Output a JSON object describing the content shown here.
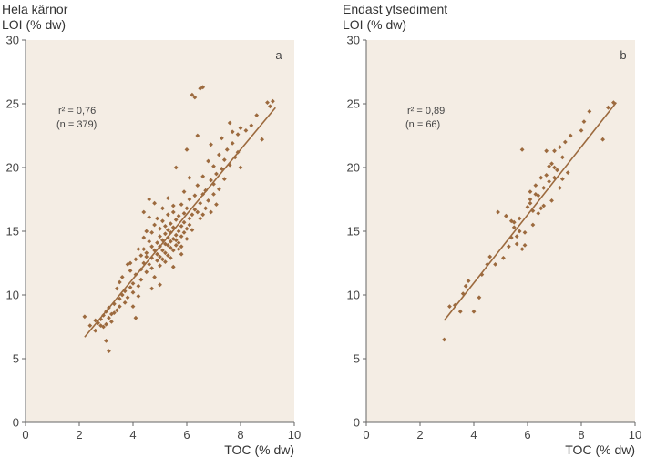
{
  "colors": {
    "background": "#ffffff",
    "plot_area": "#f4ede4",
    "marker": "#9c6a3e",
    "line": "#9c6a3e",
    "axis": "#666666"
  },
  "chart_data": [
    {
      "type": "scatter",
      "title_line1": "Hela kärnor",
      "title_line2": "LOI (% dw)",
      "xlabel": "TOC (% dw)",
      "panel_label": "a",
      "xlim": [
        0,
        10
      ],
      "ylim": [
        0,
        30
      ],
      "xticks": [
        "0",
        "2",
        "4",
        "6",
        "8",
        "10"
      ],
      "yticks": [
        "0",
        "5",
        "10",
        "15",
        "20",
        "25",
        "30"
      ],
      "r2_text": "r² = 0,76",
      "n_text": "(n = 379)",
      "fit_line": {
        "x": [
          2.2,
          9.3
        ],
        "y": [
          6.7,
          24.7
        ]
      },
      "points": [
        [
          2.2,
          8.3
        ],
        [
          2.4,
          7.6
        ],
        [
          2.6,
          8.0
        ],
        [
          2.7,
          7.8
        ],
        [
          2.8,
          7.6
        ],
        [
          2.8,
          8.1
        ],
        [
          2.9,
          7.5
        ],
        [
          2.9,
          8.4
        ],
        [
          3.0,
          6.4
        ],
        [
          3.0,
          7.7
        ],
        [
          3.0,
          8.7
        ],
        [
          3.1,
          5.6
        ],
        [
          3.1,
          8.2
        ],
        [
          3.1,
          9.0
        ],
        [
          3.2,
          8.5
        ],
        [
          3.2,
          7.9
        ],
        [
          3.3,
          9.3
        ],
        [
          3.3,
          8.6
        ],
        [
          3.4,
          8.8
        ],
        [
          3.4,
          10.5
        ],
        [
          3.5,
          9.1
        ],
        [
          3.5,
          9.7
        ],
        [
          3.6,
          10.0
        ],
        [
          3.6,
          11.4
        ],
        [
          3.7,
          9.4
        ],
        [
          3.7,
          10.3
        ],
        [
          3.8,
          12.4
        ],
        [
          3.8,
          9.8
        ],
        [
          3.9,
          10.6
        ],
        [
          3.9,
          11.9
        ],
        [
          4.0,
          10.2
        ],
        [
          4.0,
          9.1
        ],
        [
          4.0,
          10.9
        ],
        [
          4.1,
          8.2
        ],
        [
          4.1,
          11.6
        ],
        [
          4.1,
          12.8
        ],
        [
          4.2,
          9.9
        ],
        [
          4.2,
          10.7
        ],
        [
          4.3,
          13.1
        ],
        [
          4.3,
          11.2
        ],
        [
          4.3,
          12.0
        ],
        [
          4.4,
          14.5
        ],
        [
          4.4,
          13.6
        ],
        [
          4.4,
          12.5
        ],
        [
          4.5,
          13.0
        ],
        [
          4.5,
          11.8
        ],
        [
          4.5,
          15.0
        ],
        [
          4.5,
          13.3
        ],
        [
          4.6,
          12.4
        ],
        [
          4.6,
          14.2
        ],
        [
          4.6,
          16.1
        ],
        [
          4.6,
          17.5
        ],
        [
          4.7,
          13.8
        ],
        [
          4.7,
          12.9
        ],
        [
          4.7,
          14.9
        ],
        [
          4.7,
          12.1
        ],
        [
          4.8,
          13.5
        ],
        [
          4.8,
          15.5
        ],
        [
          4.8,
          17.2
        ],
        [
          4.8,
          11.4
        ],
        [
          4.9,
          14.1
        ],
        [
          4.9,
          12.7
        ],
        [
          4.9,
          13.2
        ],
        [
          4.9,
          16.0
        ],
        [
          5.0,
          14.6
        ],
        [
          5.0,
          13.0
        ],
        [
          5.0,
          15.2
        ],
        [
          5.0,
          12.3
        ],
        [
          5.0,
          13.8
        ],
        [
          5.1,
          14.3
        ],
        [
          5.1,
          15.8
        ],
        [
          5.1,
          13.5
        ],
        [
          5.1,
          12.8
        ],
        [
          5.1,
          16.8
        ],
        [
          5.2,
          14.0
        ],
        [
          5.2,
          15.4
        ],
        [
          5.2,
          13.3
        ],
        [
          5.2,
          14.8
        ],
        [
          5.2,
          12.6
        ],
        [
          5.3,
          15.1
        ],
        [
          5.3,
          13.9
        ],
        [
          5.3,
          14.5
        ],
        [
          5.3,
          16.3
        ],
        [
          5.3,
          13.1
        ],
        [
          5.4,
          14.2
        ],
        [
          5.4,
          15.6
        ],
        [
          5.4,
          13.7
        ],
        [
          5.4,
          14.9
        ],
        [
          5.4,
          12.9
        ],
        [
          5.5,
          15.3
        ],
        [
          5.5,
          14.4
        ],
        [
          5.5,
          16.5
        ],
        [
          5.5,
          13.5
        ],
        [
          5.5,
          17.0
        ],
        [
          5.6,
          14.7
        ],
        [
          5.6,
          15.9
        ],
        [
          5.6,
          13.9
        ],
        [
          5.6,
          20.0
        ],
        [
          5.6,
          14.3
        ],
        [
          5.7,
          15.0
        ],
        [
          5.7,
          14.1
        ],
        [
          5.7,
          16.2
        ],
        [
          5.7,
          13.6
        ],
        [
          5.8,
          15.4
        ],
        [
          5.8,
          14.6
        ],
        [
          5.8,
          17.1
        ],
        [
          5.8,
          13.2
        ],
        [
          5.9,
          15.7
        ],
        [
          5.9,
          14.9
        ],
        [
          5.9,
          16.4
        ],
        [
          5.9,
          18.1
        ],
        [
          6.0,
          15.2
        ],
        [
          6.0,
          16.8
        ],
        [
          6.0,
          14.4
        ],
        [
          6.0,
          21.4
        ],
        [
          6.1,
          16.0
        ],
        [
          6.1,
          15.5
        ],
        [
          6.1,
          17.5
        ],
        [
          6.2,
          16.3
        ],
        [
          6.2,
          15.1
        ],
        [
          6.2,
          25.7
        ],
        [
          6.3,
          16.7
        ],
        [
          6.3,
          17.8
        ],
        [
          6.3,
          25.5
        ],
        [
          6.4,
          16.5
        ],
        [
          6.4,
          18.6
        ],
        [
          6.4,
          22.5
        ],
        [
          6.5,
          17.2
        ],
        [
          6.5,
          26.2
        ],
        [
          6.5,
          16.0
        ],
        [
          6.6,
          17.9
        ],
        [
          6.6,
          19.3
        ],
        [
          6.6,
          26.3
        ],
        [
          6.7,
          16.8
        ],
        [
          6.7,
          18.2
        ],
        [
          6.8,
          20.5
        ],
        [
          6.8,
          17.4
        ],
        [
          6.9,
          19.0
        ],
        [
          6.9,
          21.8
        ],
        [
          6.9,
          16.5
        ],
        [
          7.0,
          18.7
        ],
        [
          7.0,
          20.1
        ],
        [
          7.1,
          19.5
        ],
        [
          7.1,
          17.1
        ],
        [
          7.2,
          21.0
        ],
        [
          7.2,
          18.3
        ],
        [
          7.3,
          19.9
        ],
        [
          7.3,
          22.3
        ],
        [
          7.4,
          20.6
        ],
        [
          7.4,
          19.1
        ],
        [
          7.5,
          21.4
        ],
        [
          7.6,
          20.2
        ],
        [
          7.6,
          23.5
        ],
        [
          7.7,
          21.9
        ],
        [
          7.8,
          20.8
        ],
        [
          7.9,
          22.6
        ],
        [
          7.9,
          21.2
        ],
        [
          8.0,
          20.0
        ],
        [
          8.2,
          22.9
        ],
        [
          8.4,
          23.3
        ],
        [
          8.6,
          24.1
        ],
        [
          8.8,
          22.2
        ],
        [
          9.0,
          25.1
        ],
        [
          9.1,
          24.8
        ],
        [
          9.2,
          25.2
        ],
        [
          8.0,
          23.1
        ],
        [
          7.7,
          22.8
        ],
        [
          6.1,
          19.2
        ],
        [
          5.3,
          17.6
        ],
        [
          4.4,
          16.5
        ],
        [
          3.9,
          12.5
        ],
        [
          3.5,
          11.0
        ],
        [
          2.6,
          7.2
        ],
        [
          5.0,
          10.8
        ],
        [
          4.7,
          10.5
        ],
        [
          5.8,
          13.8
        ],
        [
          6.6,
          16.3
        ],
        [
          7.0,
          17.9
        ],
        [
          5.5,
          12.2
        ],
        [
          4.2,
          13.6
        ]
      ]
    },
    {
      "type": "scatter",
      "title_line1": "Endast ytsediment",
      "title_line2": "LOI (% dw)",
      "xlabel": "TOC (% dw)",
      "panel_label": "b",
      "xlim": [
        0,
        10
      ],
      "ylim": [
        0,
        30
      ],
      "xticks": [
        "0",
        "2",
        "4",
        "6",
        "8",
        "10"
      ],
      "yticks": [
        "0",
        "5",
        "10",
        "15",
        "20",
        "25",
        "30"
      ],
      "r2_text": "r² = 0,89",
      "n_text": "(n = 66)",
      "fit_line": {
        "x": [
          2.9,
          9.3
        ],
        "y": [
          8.0,
          25.1
        ]
      },
      "points": [
        [
          2.9,
          6.5
        ],
        [
          3.1,
          9.1
        ],
        [
          3.3,
          9.2
        ],
        [
          3.5,
          8.7
        ],
        [
          3.7,
          10.7
        ],
        [
          3.8,
          11.1
        ],
        [
          4.0,
          8.7
        ],
        [
          4.2,
          9.8
        ],
        [
          4.5,
          12.4
        ],
        [
          4.8,
          12.4
        ],
        [
          4.9,
          16.5
        ],
        [
          5.1,
          12.9
        ],
        [
          5.2,
          16.2
        ],
        [
          5.3,
          13.8
        ],
        [
          5.4,
          14.5
        ],
        [
          5.5,
          15.7
        ],
        [
          5.5,
          15.3
        ],
        [
          5.6,
          14.0
        ],
        [
          5.7,
          16.0
        ],
        [
          5.8,
          13.6
        ],
        [
          5.8,
          21.4
        ],
        [
          5.9,
          14.9
        ],
        [
          6.0,
          16.9
        ],
        [
          6.1,
          18.1
        ],
        [
          6.1,
          17.5
        ],
        [
          6.2,
          15.5
        ],
        [
          6.3,
          18.6
        ],
        [
          6.4,
          17.8
        ],
        [
          6.4,
          16.4
        ],
        [
          6.5,
          19.2
        ],
        [
          6.6,
          18.4
        ],
        [
          6.6,
          17.0
        ],
        [
          6.7,
          21.3
        ],
        [
          6.7,
          19.4
        ],
        [
          6.8,
          20.1
        ],
        [
          6.8,
          18.9
        ],
        [
          6.9,
          17.4
        ],
        [
          7.0,
          21.3
        ],
        [
          7.0,
          20.0
        ],
        [
          7.1,
          19.8
        ],
        [
          7.2,
          21.6
        ],
        [
          7.3,
          20.8
        ],
        [
          7.4,
          22.0
        ],
        [
          7.5,
          19.6
        ],
        [
          7.6,
          22.5
        ],
        [
          8.1,
          23.6
        ],
        [
          8.3,
          24.4
        ],
        [
          8.8,
          22.2
        ],
        [
          9.0,
          24.7
        ],
        [
          9.2,
          25.1
        ],
        [
          6.2,
          16.6
        ],
        [
          7.2,
          18.4
        ],
        [
          5.6,
          14.6
        ],
        [
          4.6,
          13.0
        ],
        [
          6.5,
          16.8
        ],
        [
          7.0,
          19.2
        ],
        [
          5.9,
          13.9
        ],
        [
          6.9,
          20.3
        ],
        [
          5.4,
          15.8
        ],
        [
          8.0,
          22.9
        ],
        [
          3.6,
          10.1
        ],
        [
          6.1,
          17.2
        ],
        [
          7.3,
          19.1
        ],
        [
          5.7,
          15.0
        ],
        [
          6.3,
          17.9
        ],
        [
          4.3,
          11.6
        ]
      ]
    }
  ]
}
